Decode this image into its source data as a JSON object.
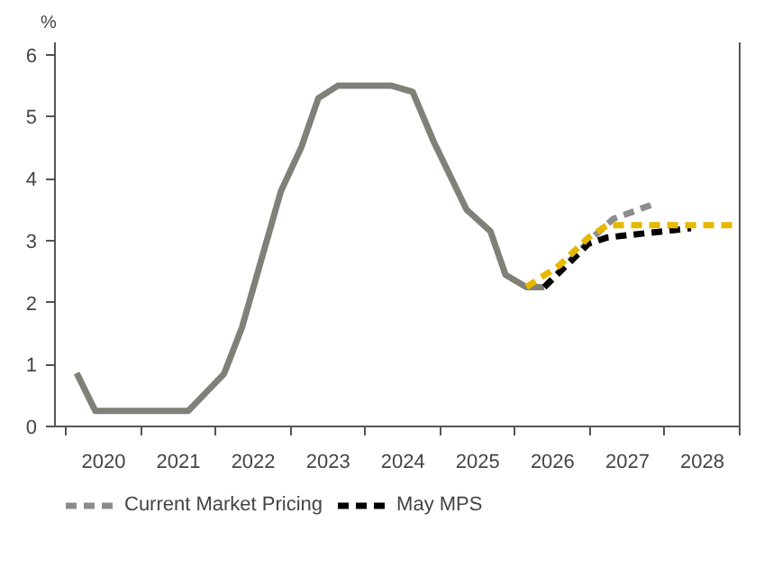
{
  "chart_data": {
    "type": "line",
    "ylabel": "%",
    "xlim": [
      2019.85,
      2029.0
    ],
    "ylim": [
      0,
      6.2
    ],
    "yticks": [
      0,
      1,
      2,
      3,
      4,
      5,
      6
    ],
    "xticks": [
      {
        "value": 2020,
        "label": null
      },
      {
        "value": 2021,
        "label": null
      },
      {
        "value": 2022,
        "label": null
      },
      {
        "value": 2023,
        "label": null
      },
      {
        "value": 2024,
        "label": null
      },
      {
        "value": 2025,
        "label": null
      },
      {
        "value": 2026,
        "label": null
      },
      {
        "value": 2027,
        "label": null
      },
      {
        "value": 2028,
        "label": null
      },
      {
        "value": 2029,
        "label": null
      },
      {
        "value": 2020.5,
        "label": "2020"
      },
      {
        "value": 2021.5,
        "label": "2021"
      },
      {
        "value": 2022.5,
        "label": "2022"
      },
      {
        "value": 2023.5,
        "label": "2023"
      },
      {
        "value": 2024.5,
        "label": "2024"
      },
      {
        "value": 2025.5,
        "label": "2025"
      },
      {
        "value": 2026.5,
        "label": "2026"
      },
      {
        "value": 2027.5,
        "label": "2027"
      },
      {
        "value": 2028.5,
        "label": "2028"
      }
    ],
    "grid": false,
    "legend": "bottom",
    "marker": "none",
    "series": [
      {
        "color": "#808078",
        "line_style": "solid",
        "x": [
          2020.14,
          2020.39,
          2021.63,
          2022.11,
          2022.35,
          2022.87,
          2023.14,
          2023.37,
          2023.63,
          2024.35,
          2024.63,
          2024.91,
          2025.35,
          2025.67,
          2025.87,
          2026.15,
          2026.39
        ],
        "values": [
          0.86,
          0.25,
          0.25,
          0.85,
          1.6,
          3.8,
          4.5,
          5.3,
          5.5,
          5.5,
          5.4,
          4.6,
          3.5,
          3.15,
          2.45,
          2.25,
          2.25
        ]
      },
      {
        "name": "Current Market Pricing",
        "color": "#8c8c8c",
        "line_style": "dashed",
        "x": [
          2026.39,
          2026.67,
          2026.99,
          2027.31,
          2027.87
        ],
        "values": [
          2.25,
          2.6,
          3.0,
          3.35,
          3.6
        ]
      },
      {
        "name": "May MPS",
        "color": "#000000",
        "line_style": "dashed",
        "x": [
          2026.39,
          2026.98,
          2027.23,
          2028.35
        ],
        "values": [
          2.25,
          2.95,
          3.05,
          3.2
        ]
      },
      {
        "color": "#e6b800",
        "line_style": "dashed",
        "x": [
          2026.15,
          2026.59,
          2026.98,
          2027.23,
          2028.9
        ],
        "values": [
          2.25,
          2.6,
          3.05,
          3.25,
          3.25
        ]
      }
    ]
  }
}
